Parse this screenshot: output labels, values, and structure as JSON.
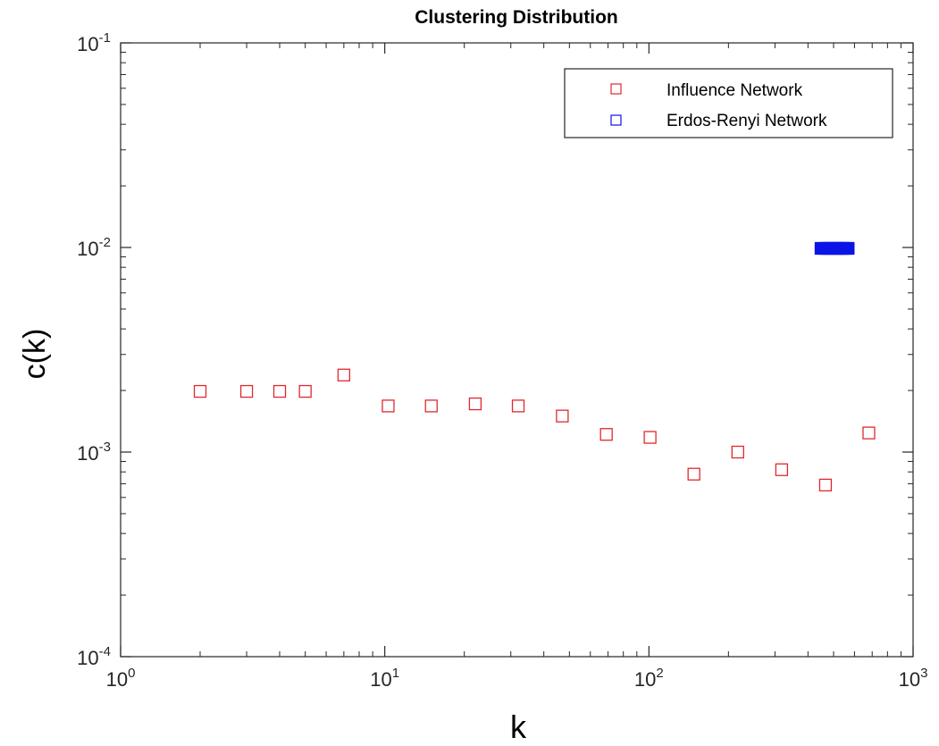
{
  "chart_data": {
    "type": "scatter",
    "title": "Clustering Distribution",
    "xlabel": "k",
    "ylabel": "c(k)",
    "xscale": "log",
    "yscale": "log",
    "xlim": [
      1,
      1000
    ],
    "ylim": [
      0.0001,
      0.1
    ],
    "grid": false,
    "legend_position": "top-right",
    "x_ticks": [
      {
        "base": "10",
        "exp": "0"
      },
      {
        "base": "10",
        "exp": "1"
      },
      {
        "base": "10",
        "exp": "2"
      },
      {
        "base": "10",
        "exp": "3"
      }
    ],
    "y_ticks": [
      {
        "base": "10",
        "exp": "-4"
      },
      {
        "base": "10",
        "exp": "-3"
      },
      {
        "base": "10",
        "exp": "-2"
      },
      {
        "base": "10",
        "exp": "-1"
      }
    ],
    "series": [
      {
        "name": "Influence Network",
        "marker": "square-open",
        "color": "#e0282e",
        "points": [
          [
            2,
            0.00198
          ],
          [
            3,
            0.00198
          ],
          [
            4,
            0.00198
          ],
          [
            5,
            0.00198
          ],
          [
            7,
            0.00238
          ],
          [
            10.3,
            0.00168
          ],
          [
            15,
            0.00168
          ],
          [
            22,
            0.00172
          ],
          [
            32,
            0.00168
          ],
          [
            47,
            0.0015
          ],
          [
            69,
            0.00122
          ],
          [
            101,
            0.00118
          ],
          [
            148,
            0.00078
          ],
          [
            217,
            0.001
          ],
          [
            318,
            0.00082
          ],
          [
            466,
            0.00069
          ],
          [
            680,
            0.00124
          ]
        ]
      },
      {
        "name": "Erdos-Renyi Network",
        "marker": "square-filled",
        "color": "#0a14e6",
        "points": [
          [
            448,
            0.0099
          ],
          [
            458,
            0.0099
          ],
          [
            468,
            0.0099
          ],
          [
            478,
            0.0099
          ],
          [
            488,
            0.0099
          ],
          [
            498,
            0.0099
          ],
          [
            508,
            0.0099
          ],
          [
            518,
            0.0099
          ],
          [
            528,
            0.0099
          ],
          [
            538,
            0.0099
          ],
          [
            548,
            0.0099
          ],
          [
            558,
            0.0099
          ],
          [
            568,
            0.0099
          ]
        ]
      }
    ]
  }
}
